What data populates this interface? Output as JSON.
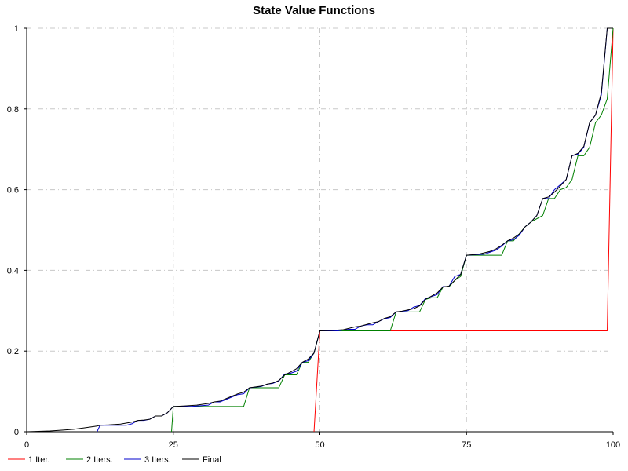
{
  "chart_data": {
    "type": "line",
    "title": "State Value Functions",
    "xlabel": "",
    "ylabel": "",
    "xlim": [
      0,
      100
    ],
    "ylim": [
      0,
      1
    ],
    "xticks": [
      "0",
      "25",
      "50",
      "75",
      "100"
    ],
    "yticks": [
      "0",
      "0.2",
      "0.4",
      "0.6",
      "0.8",
      "1"
    ],
    "grid": true,
    "legend_position": "bottom",
    "series": [
      {
        "name": "1 Iter.",
        "color": "#ff0000",
        "x": [
          49,
          50,
          99,
          100
        ],
        "y": [
          0,
          0.25,
          0.25,
          1
        ]
      },
      {
        "name": "2 Iters.",
        "color": "#008000",
        "x": [
          24.7,
          25,
          37,
          38,
          43,
          44,
          46,
          47,
          48,
          49,
          50,
          62,
          63,
          67,
          68,
          69,
          70,
          71,
          72,
          73,
          74,
          75,
          81,
          82,
          83,
          85,
          86,
          88,
          89,
          90,
          91,
          92,
          93,
          94,
          95,
          96,
          97,
          98,
          99,
          100
        ],
        "y": [
          0,
          0.0625,
          0.0625,
          0.109,
          0.109,
          0.141,
          0.141,
          0.172,
          0.172,
          0.195,
          0.25,
          0.25,
          0.297,
          0.297,
          0.328,
          0.332,
          0.332,
          0.359,
          0.359,
          0.375,
          0.385,
          0.4375,
          0.4375,
          0.473,
          0.473,
          0.508,
          0.52,
          0.536,
          0.578,
          0.578,
          0.6,
          0.605,
          0.625,
          0.684,
          0.684,
          0.705,
          0.766,
          0.785,
          0.825,
          1
        ]
      },
      {
        "name": "3 Iters.",
        "color": "#0000cd",
        "x": [
          12,
          12.5,
          15,
          17,
          18,
          19,
          20,
          21,
          22,
          23,
          24,
          25,
          28,
          31,
          32,
          33,
          34,
          35,
          36,
          37,
          38,
          40,
          41,
          42,
          43,
          44,
          45,
          46,
          47,
          48,
          49,
          50,
          53,
          55,
          56,
          57,
          58,
          59,
          60,
          61,
          62,
          63,
          65,
          66,
          67,
          68,
          69,
          70,
          71,
          72,
          73,
          74,
          75,
          78,
          80,
          81,
          82,
          83,
          84,
          85,
          86,
          87,
          88,
          89,
          90,
          91,
          92,
          93,
          94,
          95,
          96,
          97,
          98,
          99,
          100
        ],
        "y": [
          0,
          0.016,
          0.016,
          0.016,
          0.02,
          0.028,
          0.028,
          0.031,
          0.039,
          0.039,
          0.047,
          0.0625,
          0.0625,
          0.066,
          0.074,
          0.074,
          0.08,
          0.086,
          0.092,
          0.094,
          0.109,
          0.112,
          0.118,
          0.12,
          0.126,
          0.143,
          0.145,
          0.15,
          0.172,
          0.176,
          0.195,
          0.25,
          0.25,
          0.254,
          0.254,
          0.262,
          0.265,
          0.265,
          0.273,
          0.28,
          0.283,
          0.297,
          0.3,
          0.309,
          0.313,
          0.33,
          0.335,
          0.34,
          0.36,
          0.36,
          0.385,
          0.39,
          0.4375,
          0.44,
          0.45,
          0.46,
          0.473,
          0.476,
          0.487,
          0.508,
          0.52,
          0.536,
          0.578,
          0.578,
          0.6,
          0.612,
          0.625,
          0.684,
          0.688,
          0.705,
          0.766,
          0.785,
          0.835,
          1,
          1
        ]
      },
      {
        "name": "Final",
        "color": "#000000",
        "x": [
          0,
          2,
          4,
          6,
          8,
          10,
          12,
          12.5,
          14,
          16,
          18,
          19,
          20,
          21,
          22,
          23,
          24,
          25,
          27,
          29,
          31,
          32,
          33,
          34,
          35,
          36,
          37,
          38,
          40,
          41,
          42,
          43,
          44,
          45,
          46,
          47,
          48,
          49,
          50,
          52,
          54,
          56,
          57,
          58,
          59,
          60,
          61,
          62,
          63,
          64,
          66,
          67,
          68,
          69,
          70,
          71,
          72,
          73,
          74,
          75,
          77,
          79,
          80,
          81,
          82,
          83,
          84,
          85,
          86,
          87,
          88,
          89,
          90,
          91,
          92,
          93,
          94,
          95,
          96,
          97,
          98,
          99,
          100
        ],
        "y": [
          0,
          0.001,
          0.002,
          0.004,
          0.006,
          0.01,
          0.014,
          0.016,
          0.017,
          0.019,
          0.024,
          0.028,
          0.029,
          0.031,
          0.039,
          0.039,
          0.047,
          0.0625,
          0.064,
          0.066,
          0.07,
          0.074,
          0.076,
          0.082,
          0.088,
          0.094,
          0.098,
          0.109,
          0.113,
          0.118,
          0.121,
          0.127,
          0.141,
          0.148,
          0.156,
          0.172,
          0.18,
          0.195,
          0.25,
          0.251,
          0.253,
          0.26,
          0.262,
          0.266,
          0.27,
          0.273,
          0.281,
          0.285,
          0.297,
          0.299,
          0.305,
          0.312,
          0.328,
          0.336,
          0.344,
          0.359,
          0.361,
          0.375,
          0.39,
          0.4375,
          0.44,
          0.447,
          0.453,
          0.462,
          0.473,
          0.48,
          0.49,
          0.508,
          0.52,
          0.536,
          0.578,
          0.582,
          0.594,
          0.609,
          0.625,
          0.684,
          0.69,
          0.707,
          0.766,
          0.785,
          0.84,
          1,
          1
        ]
      }
    ]
  }
}
